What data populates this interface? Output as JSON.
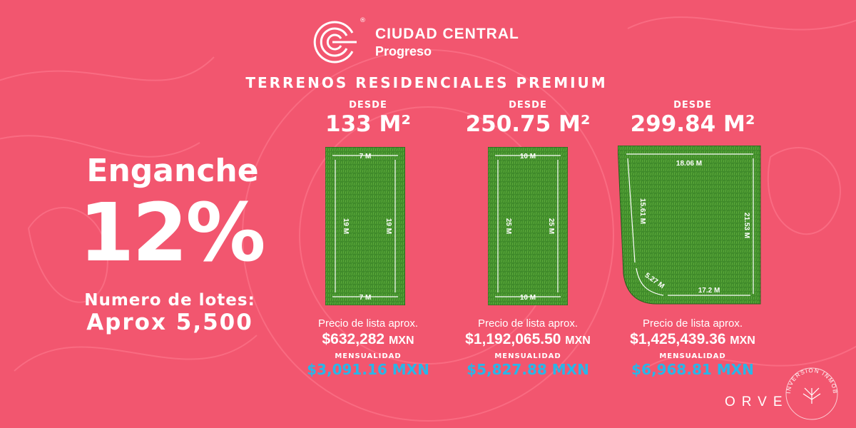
{
  "brand": {
    "name": "CIUDAD CENTRAL",
    "subtitle": "Progreso",
    "registered": "®"
  },
  "headline": "TERRENOS RESIDENCIALES PREMIUM",
  "down_payment": {
    "label": "Enganche",
    "value": "12%"
  },
  "lots_count": {
    "label": "Numero de lotes:",
    "value": "Aprox 5,500"
  },
  "lots": [
    {
      "from_label": "DESDE",
      "area": "133 M²",
      "dims": {
        "top": "7 M",
        "bottom": "7 M",
        "left": "19 M",
        "right": "19 M"
      },
      "price_label": "Precio de lista aprox.",
      "price": "$632,282",
      "currency": "MXN",
      "monthly_label": "MENSUALIDAD",
      "monthly": "$3,091.16 MXN"
    },
    {
      "from_label": "DESDE",
      "area": "250.75 M²",
      "dims": {
        "top": "10 M",
        "bottom": "10 M",
        "left": "25 M",
        "right": "25 M"
      },
      "price_label": "Precio de lista aprox.",
      "price": "$1,192,065.50",
      "currency": "MXN",
      "monthly_label": "MENSUALIDAD",
      "monthly": "$5,827.88 MXN"
    },
    {
      "from_label": "DESDE",
      "area": "299.84 M²",
      "dims": {
        "top": "18.06 M",
        "bottom": "17.2 M",
        "left": "15.61 M",
        "right": "21.53 M",
        "corner": "5.27 M"
      },
      "price_label": "Precio de lista aprox.",
      "price": "$1,425,439.36",
      "currency": "MXN",
      "monthly_label": "MENSUALIDAD",
      "monthly": "$6,968.81 MXN"
    }
  ],
  "footer": {
    "company": "ORVE",
    "seal_text": "INVERSION INMOBILIARIA"
  },
  "colors": {
    "background": "#f2566f",
    "monthly_accent": "#29b6e8",
    "grass": "#3f8a2a"
  }
}
